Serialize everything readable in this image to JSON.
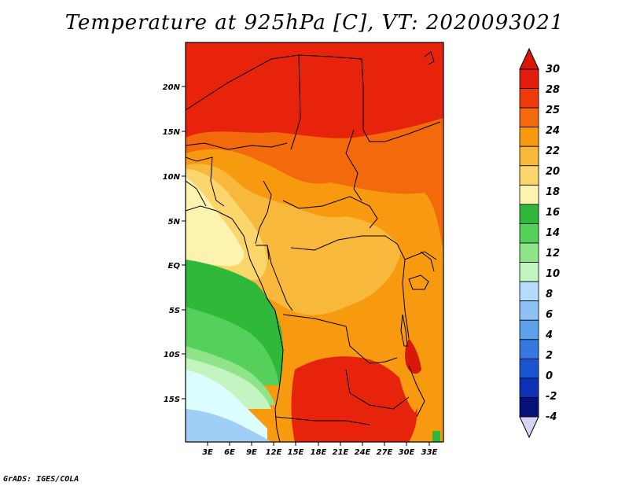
{
  "title": "Temperature at 925hPa [C], VT: 2020093021",
  "credit": "GrADS: IGES/COLA",
  "map": {
    "lat_ticks": [
      "20N",
      "15N",
      "10N",
      "5N",
      "EQ",
      "5S",
      "10S",
      "15S"
    ],
    "lon_ticks": [
      "3E",
      "6E",
      "9E",
      "12E",
      "15E",
      "18E",
      "21E",
      "24E",
      "27E",
      "30E",
      "33E"
    ]
  },
  "colorbar": {
    "levels": [
      "30",
      "28",
      "25",
      "24",
      "22",
      "20",
      "18",
      "16",
      "14",
      "12",
      "10",
      "8",
      "6",
      "4",
      "2",
      "0",
      "-2",
      "-4"
    ],
    "colors_top_to_bottom": [
      "#e21c0c",
      "#ee3a0a",
      "#f26a0c",
      "#f79a10",
      "#f8b83c",
      "#fad66c",
      "#fcf3b0",
      "#2fb83a",
      "#55d05a",
      "#8fe48a",
      "#c2f5c0",
      "#b4dcff",
      "#8ec2f5",
      "#5ea1eb",
      "#3578df",
      "#1a55cf",
      "#0d30b8",
      "#07117a"
    ],
    "top_triangle_color": "#d8190a",
    "bottom_triangle_color": "#d8d4f6"
  }
}
